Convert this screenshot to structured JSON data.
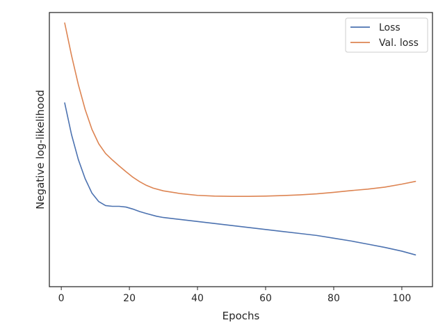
{
  "chart_data": {
    "type": "line",
    "xlabel": "Epochs",
    "ylabel": "Negative log-likelihood",
    "xlim": [
      -3.5,
      109
    ],
    "ylim": [
      0,
      100
    ],
    "xticks": [
      0,
      20,
      40,
      60,
      80,
      100
    ],
    "yticks_shown": false,
    "grid": false,
    "legend_position": "top-right",
    "series": [
      {
        "name": "Loss",
        "color": "#4c72b0",
        "x": [
          1,
          3,
          5,
          7,
          9,
          11,
          13,
          15,
          17,
          19,
          21,
          23,
          25,
          28,
          30,
          35,
          40,
          45,
          50,
          55,
          60,
          65,
          70,
          75,
          80,
          85,
          90,
          95,
          100,
          104
        ],
        "y": [
          67.9,
          55.2,
          45.2,
          37.5,
          31.7,
          28.3,
          26.7,
          26.4,
          26.4,
          26.1,
          25.3,
          24.3,
          23.5,
          22.4,
          21.9,
          21.1,
          20.3,
          19.5,
          18.7,
          17.9,
          17.1,
          16.3,
          15.5,
          14.7,
          13.6,
          12.5,
          11.2,
          9.9,
          8.4,
          6.9
        ]
      },
      {
        "name": "Val. loss",
        "color": "#dd8452",
        "x": [
          1,
          3,
          5,
          7,
          9,
          11,
          13,
          15,
          17,
          19,
          21,
          23,
          25,
          27,
          30,
          35,
          40,
          45,
          50,
          55,
          60,
          65,
          70,
          75,
          80,
          85,
          90,
          95,
          100,
          104
        ],
        "y": [
          100,
          87,
          75.3,
          65.3,
          57.3,
          51.5,
          47.6,
          45,
          42.6,
          40.3,
          38.1,
          36.3,
          34.8,
          33.7,
          32.6,
          31.5,
          30.8,
          30.5,
          30.4,
          30.4,
          30.5,
          30.7,
          31,
          31.4,
          32,
          32.7,
          33.3,
          34.1,
          35.3,
          36.4
        ]
      }
    ]
  }
}
